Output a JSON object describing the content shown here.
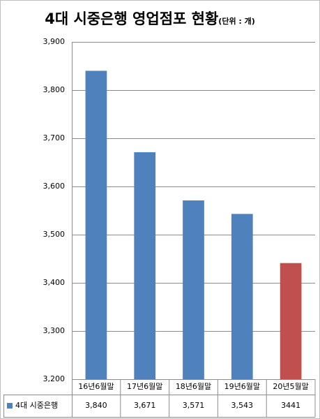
{
  "chart_data": {
    "type": "bar",
    "title": "4대 시중은행 영업점포 현황",
    "subtitle": "(단위 : 개)",
    "categories": [
      "16년6월말",
      "17년6월말",
      "18년6월말",
      "19년6월말",
      "20년5월말"
    ],
    "series": [
      {
        "name": "4대 시중은행",
        "color": "#4f81bd",
        "colors": [
          "#4f81bd",
          "#4f81bd",
          "#4f81bd",
          "#4f81bd",
          "#c0504d"
        ],
        "values": [
          3840,
          3671,
          3571,
          3543,
          3441
        ],
        "value_labels": [
          "3,840",
          "3,671",
          "3,571",
          "3,543",
          "3441"
        ]
      }
    ],
    "ylim": [
      3200,
      3900
    ],
    "yticks": [
      {
        "value": 3200,
        "label": "3,200"
      },
      {
        "value": 3300,
        "label": "3,300"
      },
      {
        "value": 3400,
        "label": "3,400"
      },
      {
        "value": 3500,
        "label": "3,500"
      },
      {
        "value": 3600,
        "label": "3,600"
      },
      {
        "value": 3700,
        "label": "3,700"
      },
      {
        "value": 3800,
        "label": "3,800"
      },
      {
        "value": 3900,
        "label": "3,900"
      }
    ],
    "grid": true
  }
}
